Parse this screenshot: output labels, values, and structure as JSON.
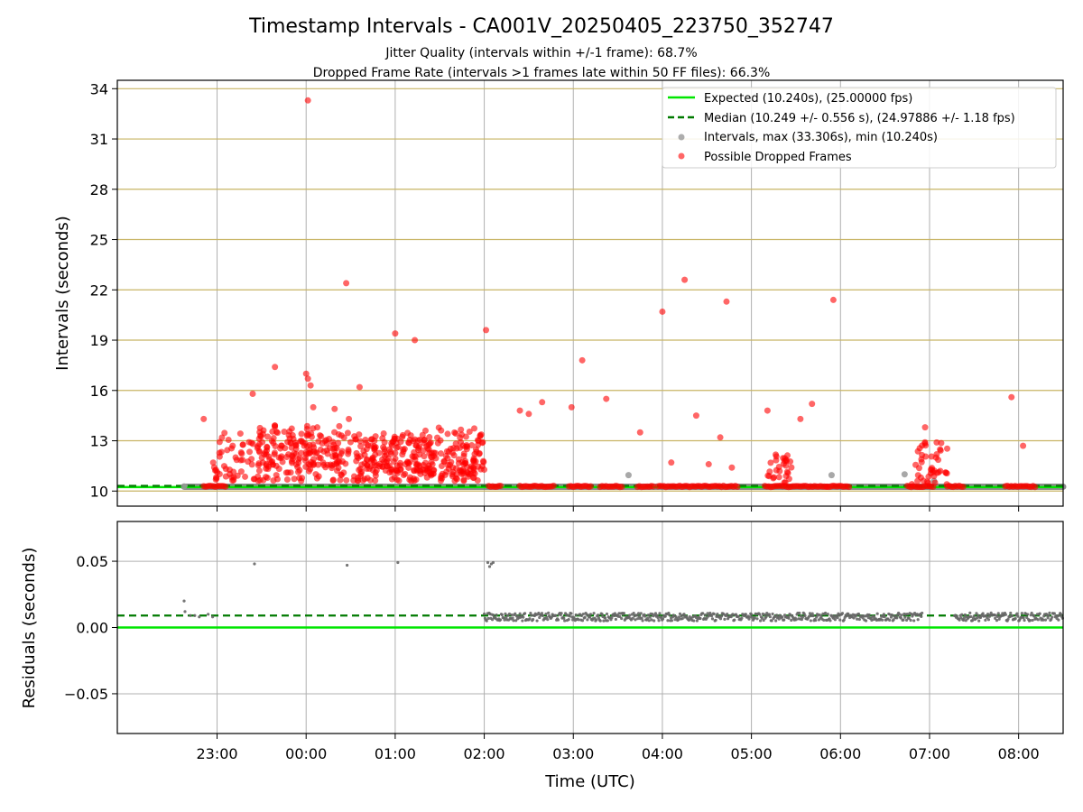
{
  "title": "Timestamp Intervals - CA001V_20250405_223750_352747",
  "subtitle_line1": "Jitter Quality (intervals within +/-1 frame): 68.7%",
  "subtitle_line2": "Dropped Frame Rate (intervals >1 frames late within 50 FF files): 66.3%",
  "colors": {
    "expected": "#00e600",
    "median": "#007a00",
    "intervals": "#999999",
    "dropped": "#ff0000",
    "residuals": "#666666",
    "hline": "#c8b464",
    "grid": "#b0b0b0"
  },
  "chart_data": [
    {
      "type": "scatter",
      "panel": "intervals",
      "xlabel": "",
      "ylabel": "Intervals (seconds)",
      "x_unit": "hours since 00:00 UTC",
      "xlim": [
        -2.12,
        8.5
      ],
      "ylim": [
        9.1,
        34.5
      ],
      "y_ticks": [
        10,
        13,
        16,
        19,
        22,
        25,
        28,
        31,
        34
      ],
      "y_tick_labels": [
        "10",
        "13",
        "16",
        "19",
        "22",
        "25",
        "28",
        "31",
        "34"
      ],
      "x_ticks": [
        -1,
        0,
        1,
        2,
        3,
        4,
        5,
        6,
        7,
        8
      ],
      "x_tick_labels": [
        "23:00",
        "00:00",
        "01:00",
        "02:00",
        "03:00",
        "04:00",
        "05:00",
        "06:00",
        "07:00",
        "08:00"
      ],
      "horizontal_lines": [
        10,
        13,
        16,
        19,
        22,
        25,
        28,
        31,
        34
      ],
      "grid": "vertical",
      "legend_position": "top-right",
      "expected_value": 10.24,
      "median_value": 10.249,
      "legend": {
        "expected": "Expected (10.240s), (25.00000 fps)",
        "median": "Median (10.249 +/- 0.556 s), (24.97886 +/- 1.18 fps)",
        "intervals": "Intervals, max (33.306s), min (10.240s)",
        "dropped": "Possible Dropped Frames"
      },
      "intervals_band": {
        "y": 10.26,
        "x_start": -1.37,
        "x_end": 8.5
      },
      "gray_outliers": [
        [
          -1.37,
          10.28
        ],
        [
          3.62,
          10.95
        ],
        [
          5.9,
          10.95
        ],
        [
          6.72,
          11.0
        ],
        [
          7.05,
          10.6
        ]
      ],
      "dropped_outliers": [
        [
          -1.15,
          14.3
        ],
        [
          -0.6,
          15.8
        ],
        [
          -0.35,
          17.4
        ],
        [
          0.02,
          33.3
        ],
        [
          0.0,
          17.0
        ],
        [
          0.02,
          16.7
        ],
        [
          0.05,
          16.3
        ],
        [
          0.08,
          15.0
        ],
        [
          0.32,
          14.9
        ],
        [
          0.45,
          22.4
        ],
        [
          0.48,
          14.3
        ],
        [
          0.6,
          16.2
        ],
        [
          1.0,
          19.4
        ],
        [
          1.22,
          19.0
        ],
        [
          2.02,
          19.6
        ],
        [
          2.4,
          14.8
        ],
        [
          2.5,
          14.6
        ],
        [
          2.65,
          15.3
        ],
        [
          2.98,
          15.0
        ],
        [
          3.1,
          17.8
        ],
        [
          3.37,
          15.5
        ],
        [
          3.75,
          13.5
        ],
        [
          4.0,
          20.7
        ],
        [
          4.1,
          11.7
        ],
        [
          4.25,
          22.6
        ],
        [
          4.38,
          14.5
        ],
        [
          4.52,
          11.6
        ],
        [
          4.65,
          13.2
        ],
        [
          4.72,
          21.3
        ],
        [
          4.78,
          11.4
        ],
        [
          5.18,
          14.8
        ],
        [
          5.55,
          14.3
        ],
        [
          5.68,
          15.2
        ],
        [
          5.92,
          21.4
        ],
        [
          6.95,
          13.8
        ],
        [
          7.08,
          12.9
        ],
        [
          7.92,
          15.6
        ],
        [
          8.05,
          12.7
        ]
      ],
      "dropped_clusters": [
        {
          "x_start": -1.05,
          "x_end": 2.0,
          "y_low": 10.6,
          "y_high": 13.5
        },
        {
          "x_start": -0.55,
          "x_end": 0.4,
          "y_low": 11.5,
          "y_high": 14.0
        },
        {
          "x_start": 0.55,
          "x_end": 1.3,
          "y_low": 11.2,
          "y_high": 13.2
        },
        {
          "x_start": 1.3,
          "x_end": 2.0,
          "y_low": 11.0,
          "y_high": 13.8
        },
        {
          "x_start": 5.18,
          "x_end": 5.45,
          "y_low": 10.5,
          "y_high": 12.4
        },
        {
          "x_start": 6.8,
          "x_end": 7.2,
          "y_low": 10.4,
          "y_high": 13.2
        }
      ],
      "dropped_baseline": [
        [
          -1.15,
          -0.9
        ],
        [
          2.05,
          2.2
        ],
        [
          2.4,
          2.8
        ],
        [
          2.95,
          3.2
        ],
        [
          3.3,
          3.55
        ],
        [
          3.72,
          3.9
        ],
        [
          3.95,
          4.85
        ],
        [
          5.15,
          5.85
        ],
        [
          5.85,
          6.1
        ],
        [
          6.75,
          7.05
        ],
        [
          7.2,
          7.4
        ],
        [
          7.85,
          8.2
        ]
      ]
    },
    {
      "type": "scatter",
      "panel": "residuals",
      "xlabel": "Time (UTC)",
      "ylabel": "Residuals (seconds)",
      "x_unit": "hours since 00:00 UTC",
      "xlim": [
        -2.12,
        8.5
      ],
      "ylim": [
        -0.08,
        0.08
      ],
      "y_ticks": [
        -0.05,
        0.0,
        0.05
      ],
      "y_tick_labels": [
        "−0.05",
        "0.00",
        "0.05"
      ],
      "x_ticks": [
        -1,
        0,
        1,
        2,
        3,
        4,
        5,
        6,
        7,
        8
      ],
      "x_tick_labels": [
        "23:00",
        "00:00",
        "01:00",
        "02:00",
        "03:00",
        "04:00",
        "05:00",
        "06:00",
        "07:00",
        "08:00"
      ],
      "grid": "both",
      "zero_line": 0.0,
      "median_line": 0.009,
      "points": [
        [
          -1.37,
          0.02
        ],
        [
          -1.36,
          0.012
        ],
        [
          -1.3,
          0.009
        ],
        [
          -1.25,
          0.009
        ],
        [
          -1.2,
          0.008
        ],
        [
          -1.1,
          0.01
        ],
        [
          -1.05,
          0.008
        ],
        [
          -0.58,
          0.048
        ],
        [
          0.46,
          0.047
        ],
        [
          1.03,
          0.049
        ],
        [
          2.04,
          0.049
        ],
        [
          2.06,
          0.046
        ],
        [
          2.08,
          0.048
        ],
        [
          2.1,
          0.049
        ]
      ],
      "residual_band": {
        "x_start": 2.0,
        "x_end": 8.5,
        "y_center": 0.008,
        "spread": 0.003,
        "gaps": [
          [
            6.92,
            7.28
          ]
        ]
      }
    }
  ]
}
